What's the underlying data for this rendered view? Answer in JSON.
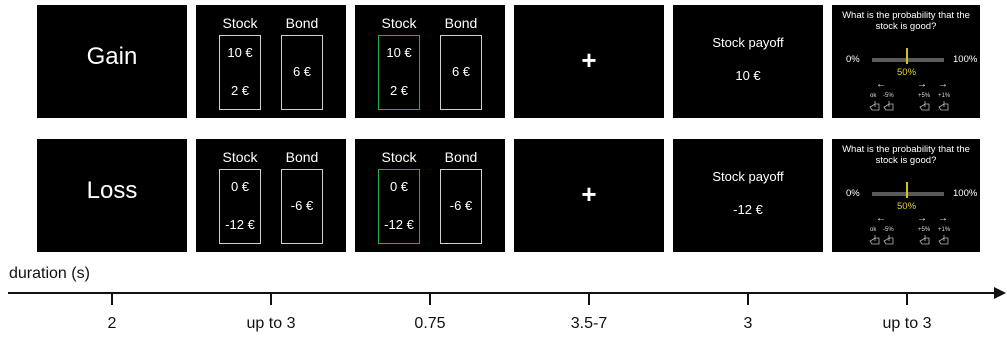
{
  "rows": [
    {
      "condition": "Gain",
      "stock_label": "Stock",
      "bond_label": "Bond",
      "stock_high": "10 €",
      "stock_low": "2 €",
      "bond_value": "6 €",
      "fixation": "+",
      "payoff_label": "Stock payoff",
      "payoff_value": "10 €",
      "question": "What is the probability that the stock is good?",
      "scale_min": "0%",
      "scale_max": "100%",
      "scale_current": "50%",
      "key_ok": "ok",
      "key_minus5": "-5%",
      "key_plus5": "+5%",
      "key_plus1": "+1%"
    },
    {
      "condition": "Loss",
      "stock_label": "Stock",
      "bond_label": "Bond",
      "stock_high": "0 €",
      "stock_low": "-12 €",
      "bond_value": "-6 €",
      "fixation": "+",
      "payoff_label": "Stock payoff",
      "payoff_value": "-12 €",
      "question": "What is the probability that the stock is good?",
      "scale_min": "0%",
      "scale_max": "100%",
      "scale_current": "50%",
      "key_ok": "ok",
      "key_minus5": "-5%",
      "key_plus5": "+5%",
      "key_plus1": "+1%"
    }
  ],
  "timeline": {
    "label": "duration (s)",
    "durations": [
      "2",
      "up to 3",
      "0.75",
      "3.5-7",
      "3",
      "up to 3"
    ]
  },
  "colors": {
    "panel_background": "#000000",
    "selected_border": "#22b14c",
    "marker": "#d7c21b",
    "text": "#ffffff"
  }
}
